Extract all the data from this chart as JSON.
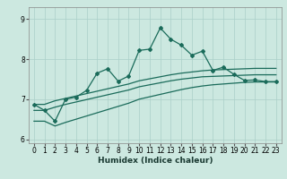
{
  "xlabel": "Humidex (Indice chaleur)",
  "background_color": "#cce8e0",
  "line_color": "#1a6b5a",
  "grid_color": "#aacfc8",
  "xlim": [
    -0.5,
    23.5
  ],
  "ylim": [
    5.9,
    9.3
  ],
  "yticks": [
    6,
    7,
    8,
    9
  ],
  "xticks": [
    0,
    1,
    2,
    3,
    4,
    5,
    6,
    7,
    8,
    9,
    10,
    11,
    12,
    13,
    14,
    15,
    16,
    17,
    18,
    19,
    20,
    21,
    22,
    23
  ],
  "main_y": [
    6.87,
    6.72,
    6.45,
    7.0,
    7.05,
    7.22,
    7.65,
    7.76,
    7.45,
    7.58,
    8.22,
    8.25,
    8.78,
    8.5,
    8.35,
    8.1,
    8.2,
    7.72,
    7.8,
    7.62,
    7.47,
    7.48,
    7.44,
    7.44
  ],
  "smooth_high_y": [
    6.87,
    6.87,
    6.96,
    7.02,
    7.08,
    7.14,
    7.2,
    7.26,
    7.32,
    7.38,
    7.46,
    7.51,
    7.56,
    7.61,
    7.65,
    7.68,
    7.71,
    7.73,
    7.74,
    7.75,
    7.76,
    7.77,
    7.77,
    7.77
  ],
  "smooth_mid_y": [
    6.72,
    6.72,
    6.8,
    6.87,
    6.93,
    6.99,
    7.05,
    7.11,
    7.17,
    7.23,
    7.31,
    7.36,
    7.41,
    7.46,
    7.5,
    7.53,
    7.56,
    7.57,
    7.58,
    7.59,
    7.6,
    7.61,
    7.61,
    7.61
  ],
  "smooth_low_y": [
    6.45,
    6.45,
    6.33,
    6.42,
    6.5,
    6.58,
    6.66,
    6.74,
    6.82,
    6.9,
    7.0,
    7.06,
    7.12,
    7.18,
    7.24,
    7.29,
    7.33,
    7.36,
    7.38,
    7.4,
    7.42,
    7.43,
    7.43,
    7.43
  ]
}
